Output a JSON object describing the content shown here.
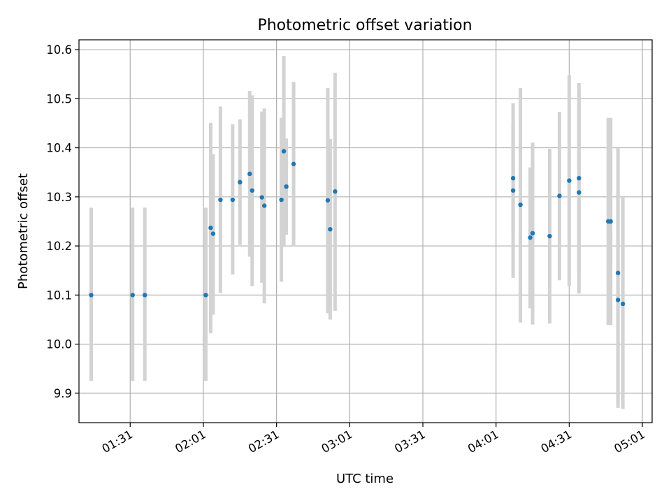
{
  "chart_data": {
    "type": "scatter",
    "title": "Photometric offset variation",
    "xlabel": "UTC time",
    "ylabel": "Photometric offset",
    "x_unit": "HH:MM UTC",
    "xlim": [
      "01:10",
      "05:05"
    ],
    "ylim": [
      9.84,
      10.62
    ],
    "x_ticks": [
      "01:31",
      "02:01",
      "02:31",
      "03:01",
      "03:31",
      "04:01",
      "04:31",
      "05:01"
    ],
    "y_ticks": [
      "9.9",
      "10.0",
      "10.1",
      "10.2",
      "10.3",
      "10.4",
      "10.5",
      "10.6"
    ],
    "grid": true,
    "legend": "none",
    "marker_color": "#1f77b4",
    "errorbar_color": "#d3d3d3",
    "points": [
      {
        "x": "01:15",
        "y": 10.1,
        "ylow": 9.925,
        "yhigh": 10.278
      },
      {
        "x": "01:32",
        "y": 10.1,
        "ylow": 9.925,
        "yhigh": 10.278
      },
      {
        "x": "01:37",
        "y": 10.1,
        "ylow": 9.925,
        "yhigh": 10.278
      },
      {
        "x": "02:02",
        "y": 10.1,
        "ylow": 9.925,
        "yhigh": 10.278
      },
      {
        "x": "02:04",
        "y": 10.237,
        "ylow": 10.022,
        "yhigh": 10.451
      },
      {
        "x": "02:05",
        "y": 10.225,
        "ylow": 10.06,
        "yhigh": 10.387
      },
      {
        "x": "02:08",
        "y": 10.294,
        "ylow": 10.104,
        "yhigh": 10.484
      },
      {
        "x": "02:13",
        "y": 10.294,
        "ylow": 10.142,
        "yhigh": 10.448
      },
      {
        "x": "02:16",
        "y": 10.33,
        "ylow": 10.202,
        "yhigh": 10.458
      },
      {
        "x": "02:20",
        "y": 10.347,
        "ylow": 10.178,
        "yhigh": 10.516
      },
      {
        "x": "02:21",
        "y": 10.313,
        "ylow": 10.118,
        "yhigh": 10.507
      },
      {
        "x": "02:25",
        "y": 10.299,
        "ylow": 10.125,
        "yhigh": 10.474
      },
      {
        "x": "02:26",
        "y": 10.282,
        "ylow": 10.083,
        "yhigh": 10.48
      },
      {
        "x": "02:33",
        "y": 10.294,
        "ylow": 10.127,
        "yhigh": 10.461
      },
      {
        "x": "02:34",
        "y": 10.393,
        "ylow": 10.198,
        "yhigh": 10.587
      },
      {
        "x": "02:35",
        "y": 10.321,
        "ylow": 10.223,
        "yhigh": 10.419
      },
      {
        "x": "02:38",
        "y": 10.367,
        "ylow": 10.2,
        "yhigh": 10.534
      },
      {
        "x": "02:52",
        "y": 10.293,
        "ylow": 10.063,
        "yhigh": 10.522
      },
      {
        "x": "02:53",
        "y": 10.234,
        "ylow": 10.05,
        "yhigh": 10.418
      },
      {
        "x": "02:55",
        "y": 10.311,
        "ylow": 10.068,
        "yhigh": 10.553
      },
      {
        "x": "04:08",
        "y": 10.338,
        "ylow": 10.226,
        "yhigh": 10.45
      },
      {
        "x": "04:08",
        "y": 10.313,
        "ylow": 10.135,
        "yhigh": 10.491
      },
      {
        "x": "04:11",
        "y": 10.284,
        "ylow": 10.044,
        "yhigh": 10.522
      },
      {
        "x": "04:15",
        "y": 10.217,
        "ylow": 10.073,
        "yhigh": 10.36
      },
      {
        "x": "04:16",
        "y": 10.226,
        "ylow": 10.04,
        "yhigh": 10.411
      },
      {
        "x": "04:23",
        "y": 10.22,
        "ylow": 10.042,
        "yhigh": 10.398
      },
      {
        "x": "04:27",
        "y": 10.302,
        "ylow": 10.13,
        "yhigh": 10.473
      },
      {
        "x": "04:31",
        "y": 10.333,
        "ylow": 10.118,
        "yhigh": 10.548
      },
      {
        "x": "04:35",
        "y": 10.338,
        "ylow": 10.145,
        "yhigh": 10.532
      },
      {
        "x": "04:35",
        "y": 10.309,
        "ylow": 10.103,
        "yhigh": 10.514
      },
      {
        "x": "04:47",
        "y": 10.25,
        "ylow": 10.039,
        "yhigh": 10.461
      },
      {
        "x": "04:48",
        "y": 10.25,
        "ylow": 10.039,
        "yhigh": 10.461
      },
      {
        "x": "04:51",
        "y": 10.145,
        "ylow": 9.87,
        "yhigh": 10.399
      },
      {
        "x": "04:51",
        "y": 10.09,
        "ylow": 9.88,
        "yhigh": 10.31
      },
      {
        "x": "04:53",
        "y": 10.082,
        "ylow": 9.868,
        "yhigh": 10.3
      }
    ]
  }
}
